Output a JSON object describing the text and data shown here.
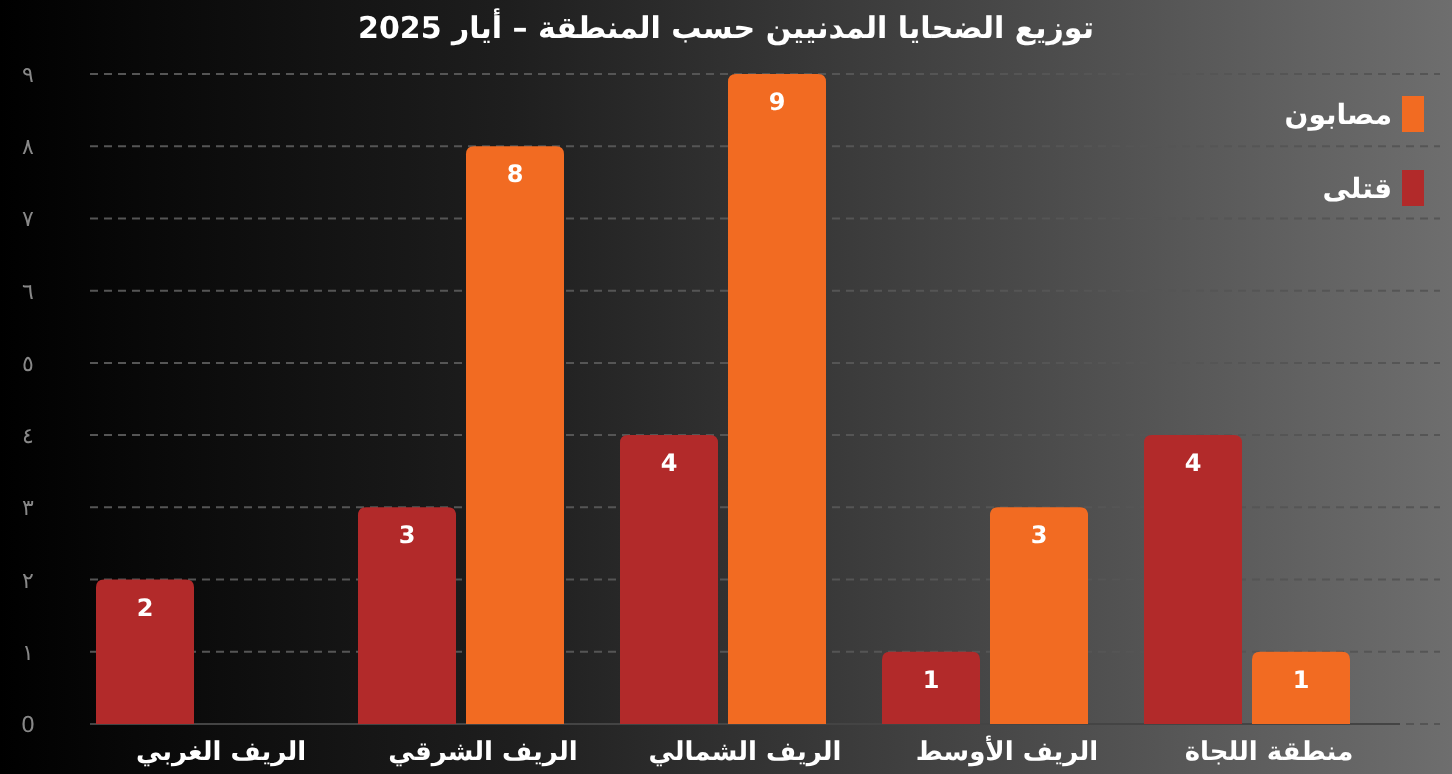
{
  "chart_data": {
    "type": "bar",
    "title": "توزيع الضحايا المدنيين حسب المنطقة – أيار 2025",
    "categories": [
      "الريف الغربي",
      "الريف الشرقي",
      "الريف الشمالي",
      "الريف الأوسط",
      "منطقة اللجاة"
    ],
    "series": [
      {
        "name": "قتلى",
        "color": "#b22a2a",
        "values": [
          2,
          3,
          4,
          1,
          4
        ]
      },
      {
        "name": "مصابون",
        "color": "#f26b22",
        "values": [
          null,
          8,
          9,
          3,
          1
        ]
      }
    ],
    "ylim": [
      0,
      9
    ],
    "yticks": [
      {
        "value": 0,
        "label": "0"
      },
      {
        "value": 1,
        "label": "١"
      },
      {
        "value": 2,
        "label": "٢"
      },
      {
        "value": 3,
        "label": "٣"
      },
      {
        "value": 4,
        "label": "٤"
      },
      {
        "value": 5,
        "label": "٥"
      },
      {
        "value": 6,
        "label": "٦"
      },
      {
        "value": 7,
        "label": "٧"
      },
      {
        "value": 8,
        "label": "٨"
      },
      {
        "value": 9,
        "label": "٩"
      }
    ],
    "grid": "y",
    "legend": "top right",
    "data_labels": true
  }
}
